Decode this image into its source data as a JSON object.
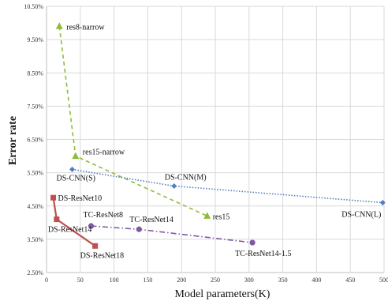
{
  "chart_data": {
    "type": "line",
    "title": "",
    "xlabel": "Model parameters(K)",
    "ylabel": "Error rate",
    "xlim": [
      0,
      500
    ],
    "ylim": [
      2.5,
      10.5
    ],
    "grid": true,
    "x_ticks": [
      {
        "value": 0,
        "label": "0"
      },
      {
        "value": 50,
        "label": "50"
      },
      {
        "value": 100,
        "label": "100"
      },
      {
        "value": 150,
        "label": "150"
      },
      {
        "value": 200,
        "label": "200"
      },
      {
        "value": 250,
        "label": "250"
      },
      {
        "value": 300,
        "label": "300"
      },
      {
        "value": 350,
        "label": "350"
      },
      {
        "value": 400,
        "label": "400"
      },
      {
        "value": 450,
        "label": "450"
      },
      {
        "value": 500,
        "label": "500"
      }
    ],
    "y_ticks": [
      {
        "value": 2.5,
        "label": "2.50%"
      },
      {
        "value": 3.5,
        "label": "3.50%"
      },
      {
        "value": 4.5,
        "label": "4.50%"
      },
      {
        "value": 5.5,
        "label": "5.50%"
      },
      {
        "value": 6.5,
        "label": "6.50%"
      },
      {
        "value": 7.5,
        "label": "7.50%"
      },
      {
        "value": 8.5,
        "label": "8.50%"
      },
      {
        "value": 9.5,
        "label": "9.50%"
      },
      {
        "value": 10.5,
        "label": "10.50%"
      }
    ],
    "series": [
      {
        "key": "res",
        "color": "#8fbc3a",
        "dash": "5,4",
        "marker": "triangle",
        "points": [
          {
            "x": 19,
            "y": 9.9,
            "label": "res8-narrow"
          },
          {
            "x": 43,
            "y": 6.0,
            "label": "res15-narrow"
          },
          {
            "x": 238,
            "y": 4.2,
            "label": "res15"
          }
        ]
      },
      {
        "key": "ds-cnn",
        "color": "#4f7fc0",
        "dash": "1.5,2",
        "marker": "diamond",
        "points": [
          {
            "x": 38,
            "y": 5.6,
            "label": "DS-CNN(S)"
          },
          {
            "x": 189,
            "y": 5.1,
            "label": "DS-CNN(M)"
          },
          {
            "x": 498,
            "y": 4.6,
            "label": "DS-CNN(L)"
          }
        ]
      },
      {
        "key": "tc-resnet",
        "color": "#7e5aa6",
        "dash": "7,3,1.5,3",
        "marker": "circle",
        "points": [
          {
            "x": 66,
            "y": 3.9,
            "label": "TC-ResNet8"
          },
          {
            "x": 137,
            "y": 3.8,
            "label": "TC-ResNet14"
          },
          {
            "x": 305,
            "y": 3.4,
            "label": "TC-ResNet14-1.5"
          }
        ]
      },
      {
        "key": "ds-resnet",
        "color": "#c0504d",
        "dash": "",
        "marker": "square",
        "points": [
          {
            "x": 10,
            "y": 4.75,
            "label": "DS-ResNet10"
          },
          {
            "x": 15,
            "y": 4.1,
            "label": "DS-ResNet14"
          },
          {
            "x": 72,
            "y": 3.3,
            "label": "DS-ResNet18"
          }
        ]
      }
    ]
  }
}
